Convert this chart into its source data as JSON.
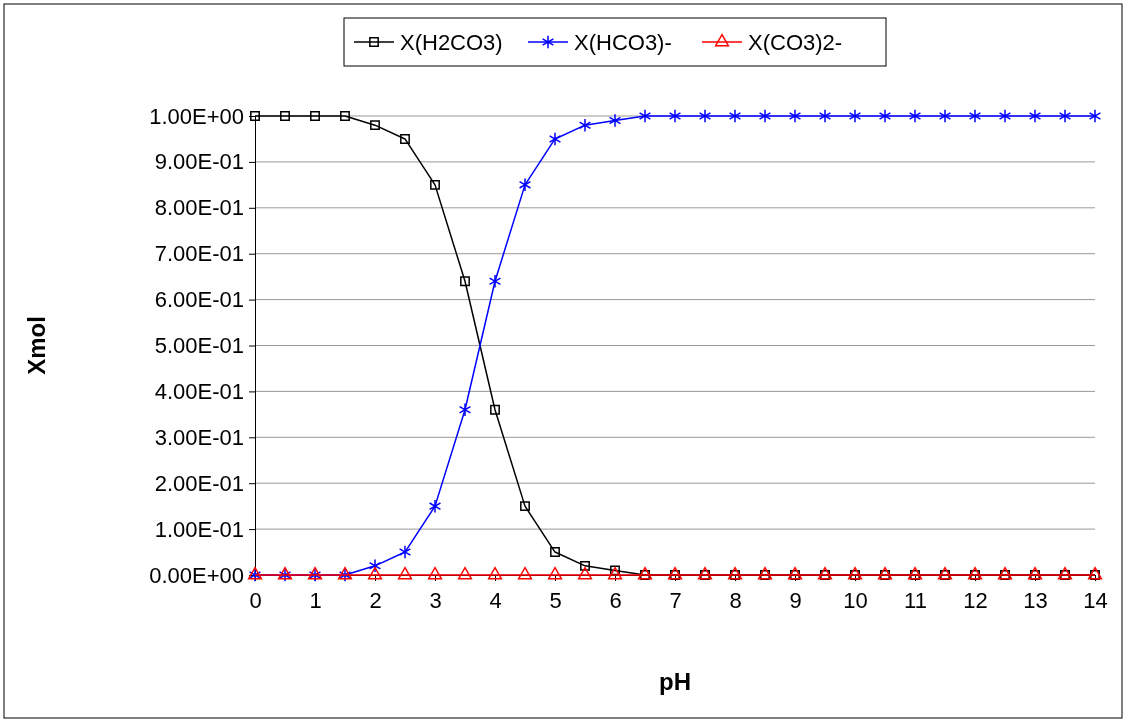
{
  "chart_data": {
    "type": "line",
    "xlabel": "pH",
    "ylabel": "Xmol",
    "x": [
      0,
      0.5,
      1,
      1.5,
      2,
      2.5,
      3,
      3.5,
      4,
      4.5,
      5,
      5.5,
      6,
      6.5,
      7,
      7.5,
      8,
      8.5,
      9,
      9.5,
      10,
      10.5,
      11,
      11.5,
      12,
      12.5,
      13,
      13.5,
      14
    ],
    "xlim": [
      0,
      14
    ],
    "xticks": [
      0,
      1,
      2,
      3,
      4,
      5,
      6,
      7,
      8,
      9,
      10,
      11,
      12,
      13,
      14
    ],
    "ylim": [
      0,
      1
    ],
    "yticks": [
      {
        "value": 0,
        "label": "0.00E+00"
      },
      {
        "value": 0.1,
        "label": "1.00E-01"
      },
      {
        "value": 0.2,
        "label": "2.00E-01"
      },
      {
        "value": 0.3,
        "label": "3.00E-01"
      },
      {
        "value": 0.4,
        "label": "4.00E-01"
      },
      {
        "value": 0.5,
        "label": "5.00E-01"
      },
      {
        "value": 0.6,
        "label": "6.00E-01"
      },
      {
        "value": 0.7,
        "label": "7.00E-01"
      },
      {
        "value": 0.8,
        "label": "8.00E-01"
      },
      {
        "value": 0.9,
        "label": "9.00E-01"
      },
      {
        "value": 1,
        "label": "1.00E+00"
      }
    ],
    "grid": "y",
    "legend": "top",
    "series": [
      {
        "name": "X(H2CO3)",
        "color": "#000000",
        "marker": "square",
        "values": [
          1,
          1,
          1,
          1,
          0.98,
          0.95,
          0.85,
          0.64,
          0.36,
          0.15,
          0.05,
          0.02,
          0.01,
          0,
          0,
          0,
          0,
          0,
          0,
          0,
          0,
          0,
          0,
          0,
          0,
          0,
          0,
          0,
          0
        ]
      },
      {
        "name": "X(HCO3)-",
        "color": "#0000ff",
        "marker": "cross",
        "values": [
          0,
          0,
          0,
          0,
          0.02,
          0.05,
          0.15,
          0.36,
          0.64,
          0.85,
          0.95,
          0.98,
          0.99,
          1,
          1,
          1,
          1,
          1,
          1,
          1,
          1,
          1,
          1,
          1,
          1,
          1,
          1,
          1,
          1
        ]
      },
      {
        "name": "X(CO3)2-",
        "color": "#ff0000",
        "marker": "triangle",
        "values": [
          0,
          0,
          0,
          0,
          0,
          0,
          0,
          0,
          0,
          0,
          0,
          0,
          0,
          0,
          0,
          0,
          0,
          0,
          0,
          0,
          0,
          0,
          0,
          0,
          0,
          0,
          0,
          0,
          0
        ]
      }
    ]
  }
}
